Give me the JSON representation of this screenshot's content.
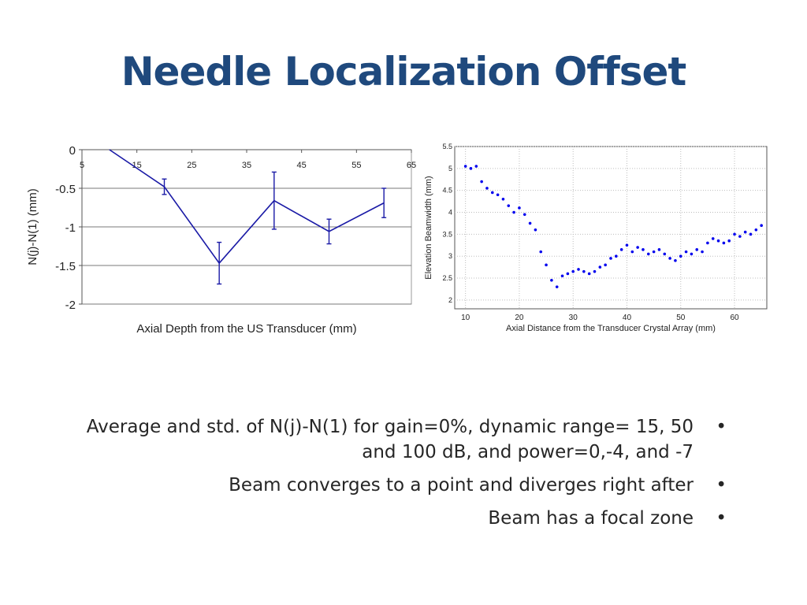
{
  "title": "Needle Localization Offset",
  "chart_data": [
    {
      "type": "line",
      "xlabel": "Axial Depth from the US Transducer (mm)",
      "ylabel": "N(j)-N(1) (mm)",
      "xlim": [
        5,
        65
      ],
      "ylim": [
        -2,
        0
      ],
      "xticks": [
        5,
        15,
        25,
        35,
        45,
        55,
        65
      ],
      "yticks": [
        0,
        -0.5,
        -1,
        -1.5,
        -2
      ],
      "xtick_labels": [
        "5",
        "15",
        "25",
        "35",
        "45",
        "55",
        "65"
      ],
      "ytick_labels": [
        "0",
        "-0.5",
        "-1",
        "-1.5",
        "-2"
      ],
      "x_axis_position": "top",
      "grid": "horizontal",
      "color": "#1a1aa6",
      "series": [
        {
          "x": [
            10,
            20,
            30,
            40,
            50,
            60
          ],
          "y": [
            0,
            -0.48,
            -1.47,
            -0.66,
            -1.06,
            -0.69
          ],
          "error": [
            0,
            0.1,
            0.27,
            0.37,
            0.16,
            0.19
          ]
        }
      ]
    },
    {
      "type": "scatter",
      "xlabel": "Axial Distance from the Transducer Crystal Array (mm)",
      "ylabel": "Elevation Beamwidth (mm)",
      "xlim": [
        8,
        66
      ],
      "ylim": [
        1.8,
        5.5
      ],
      "xticks": [
        10,
        20,
        30,
        40,
        50,
        60
      ],
      "yticks": [
        2,
        2.5,
        3,
        3.5,
        4,
        4.5,
        5,
        5.5
      ],
      "xtick_labels": [
        "10",
        "20",
        "30",
        "40",
        "50",
        "60"
      ],
      "ytick_labels": [
        "2",
        "2.5",
        "3",
        "3.5",
        "4",
        "4.5",
        "5",
        "5.5"
      ],
      "grid": "dotted",
      "color": "#0000ee",
      "series": [
        {
          "x": [
            10,
            11,
            12,
            13,
            14,
            15,
            16,
            17,
            18,
            19,
            20,
            21,
            22,
            23,
            24,
            25,
            26,
            27,
            28,
            29,
            30,
            31,
            32,
            33,
            34,
            35,
            36,
            37,
            38,
            39,
            40,
            41,
            42,
            43,
            44,
            45,
            46,
            47,
            48,
            49,
            50,
            51,
            52,
            53,
            54,
            55,
            56,
            57,
            58,
            59,
            60,
            61,
            62,
            63,
            64,
            65
          ],
          "y": [
            5.05,
            5.0,
            5.05,
            4.7,
            4.55,
            4.45,
            4.4,
            4.3,
            4.15,
            4.0,
            4.1,
            3.95,
            3.75,
            3.6,
            3.1,
            2.8,
            2.45,
            2.3,
            2.55,
            2.6,
            2.65,
            2.7,
            2.65,
            2.6,
            2.65,
            2.75,
            2.8,
            2.95,
            3.0,
            3.15,
            3.25,
            3.1,
            3.2,
            3.15,
            3.05,
            3.1,
            3.15,
            3.05,
            2.95,
            2.9,
            3.0,
            3.1,
            3.05,
            3.15,
            3.1,
            3.3,
            3.4,
            3.35,
            3.3,
            3.35,
            3.5,
            3.45,
            3.55,
            3.5,
            3.6,
            3.7
          ]
        }
      ]
    }
  ],
  "bullets": [
    "Average and std. of N(j)-N(1) for gain=0%, dynamic range= 15, 50 and 100 dB, and power=0,-4, and -7",
    "Beam converges to a point and diverges right after",
    "Beam has a focal zone"
  ],
  "bullet_symbol": "•"
}
